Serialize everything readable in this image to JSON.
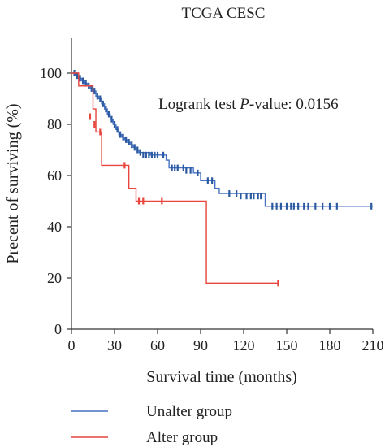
{
  "chart_data": {
    "type": "line",
    "title": "TCGA CESC",
    "xlabel": "Survival time (months)",
    "ylabel": "Precent of surviving (%)",
    "xlim": [
      0,
      210
    ],
    "ylim": [
      0,
      100
    ],
    "x_ticks": [
      "0",
      "30",
      "60",
      "90",
      "120",
      "150",
      "180",
      "210"
    ],
    "y_ticks": [
      "0",
      "20",
      "40",
      "60",
      "80",
      "100"
    ],
    "annotation": {
      "prefix": "Logrank test ",
      "italic": "P",
      "suffix": "-value: 0.0156"
    },
    "legend_position": "bottom-left",
    "grid": false,
    "series": [
      {
        "name": "Unalter group",
        "color": "#4472c4",
        "censor_color": "#2c5aa0",
        "steps": [
          [
            0,
            100
          ],
          [
            3,
            99
          ],
          [
            5,
            98
          ],
          [
            7,
            97
          ],
          [
            9,
            96
          ],
          [
            11,
            95
          ],
          [
            13,
            94
          ],
          [
            15,
            93
          ],
          [
            17,
            91
          ],
          [
            19,
            90
          ],
          [
            21,
            88
          ],
          [
            23,
            86
          ],
          [
            25,
            84
          ],
          [
            27,
            82
          ],
          [
            29,
            80
          ],
          [
            31,
            78
          ],
          [
            33,
            76
          ],
          [
            35,
            75
          ],
          [
            37,
            74
          ],
          [
            39,
            73
          ],
          [
            41,
            72
          ],
          [
            43,
            71
          ],
          [
            45,
            70
          ],
          [
            47,
            69
          ],
          [
            55,
            68
          ],
          [
            66,
            66
          ],
          [
            68,
            63
          ],
          [
            75,
            63
          ],
          [
            85,
            61
          ],
          [
            90,
            58
          ],
          [
            100,
            55
          ],
          [
            103,
            53
          ],
          [
            135,
            48
          ],
          [
            210,
            48
          ]
        ],
        "censors": [
          [
            2,
            100
          ],
          [
            4,
            99
          ],
          [
            6,
            98
          ],
          [
            8,
            97
          ],
          [
            10,
            96
          ],
          [
            12,
            95
          ],
          [
            14,
            94
          ],
          [
            16,
            93
          ],
          [
            18,
            91
          ],
          [
            20,
            90
          ],
          [
            22,
            88
          ],
          [
            24,
            86
          ],
          [
            26,
            84
          ],
          [
            28,
            82
          ],
          [
            30,
            80
          ],
          [
            32,
            78
          ],
          [
            34,
            76
          ],
          [
            36,
            75
          ],
          [
            38,
            74
          ],
          [
            40,
            73
          ],
          [
            42,
            72
          ],
          [
            44,
            71
          ],
          [
            46,
            70
          ],
          [
            48,
            69
          ],
          [
            50,
            68
          ],
          [
            52,
            68
          ],
          [
            54,
            68
          ],
          [
            56,
            68
          ],
          [
            58,
            68
          ],
          [
            60,
            68
          ],
          [
            64,
            68
          ],
          [
            70,
            63
          ],
          [
            72,
            63
          ],
          [
            74,
            63
          ],
          [
            78,
            63
          ],
          [
            80,
            62
          ],
          [
            83,
            62
          ],
          [
            88,
            61
          ],
          [
            95,
            58
          ],
          [
            98,
            58
          ],
          [
            110,
            53
          ],
          [
            115,
            53
          ],
          [
            118,
            52
          ],
          [
            122,
            52
          ],
          [
            125,
            52
          ],
          [
            127,
            52
          ],
          [
            130,
            52
          ],
          [
            132,
            52
          ],
          [
            140,
            48
          ],
          [
            143,
            48
          ],
          [
            146,
            48
          ],
          [
            150,
            48
          ],
          [
            153,
            48
          ],
          [
            155,
            48
          ],
          [
            158,
            48
          ],
          [
            162,
            48
          ],
          [
            165,
            48
          ],
          [
            170,
            48
          ],
          [
            175,
            48
          ],
          [
            180,
            48
          ],
          [
            185,
            48
          ],
          [
            209,
            48
          ]
        ]
      },
      {
        "name": "Alter group",
        "color": "#e8453c",
        "censor_color": "#e8453c",
        "steps": [
          [
            0,
            100
          ],
          [
            5,
            95
          ],
          [
            15,
            86
          ],
          [
            17,
            77
          ],
          [
            21,
            64
          ],
          [
            40,
            55
          ],
          [
            45,
            50
          ],
          [
            94,
            18
          ],
          [
            144,
            18
          ]
        ],
        "censors": [
          [
            13,
            83
          ],
          [
            16,
            80
          ],
          [
            20,
            77
          ],
          [
            37,
            64
          ],
          [
            47,
            50
          ],
          [
            50,
            50
          ],
          [
            63,
            50
          ],
          [
            144,
            18
          ]
        ]
      }
    ]
  }
}
